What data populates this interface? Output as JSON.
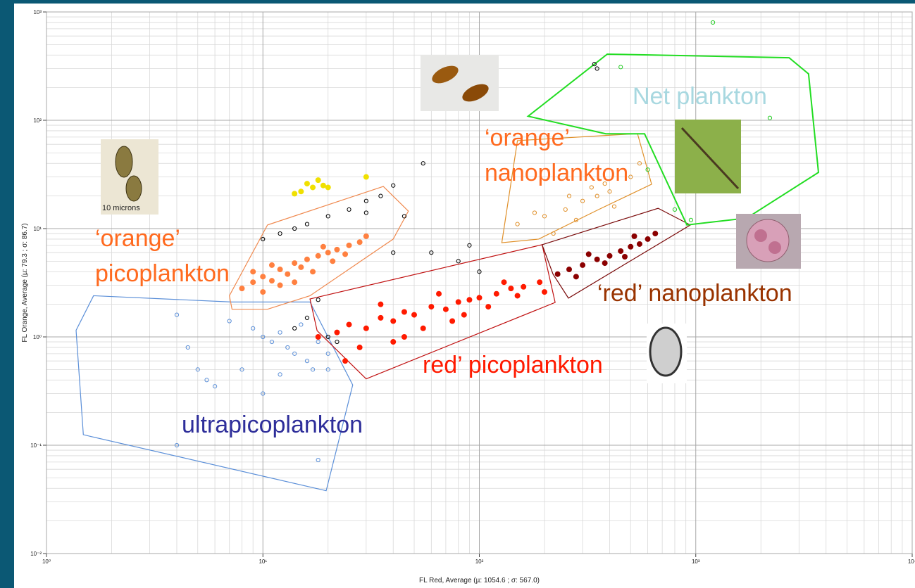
{
  "chart_data": {
    "type": "scatter",
    "log_x": true,
    "log_y": true,
    "grid": true,
    "x_label": "FL Red, Average (µ: 1054.6 ; σ: 567.0)",
    "y_label": "FL Orange, Average (µ: 79.3 ; σ: 86.7)",
    "xlim": [
      1,
      10000
    ],
    "ylim": [
      0.01,
      1000
    ],
    "xticks": [
      {
        "value": 1,
        "label": "10⁰"
      },
      {
        "value": 10,
        "label": "10¹"
      },
      {
        "value": 100,
        "label": "10²"
      },
      {
        "value": 1000,
        "label": "10³"
      },
      {
        "value": 10000,
        "label": "10⁴"
      }
    ],
    "yticks": [
      {
        "value": 0.01,
        "label": "10⁻²"
      },
      {
        "value": 0.1,
        "label": "10⁻¹"
      },
      {
        "value": 1,
        "label": "10⁰"
      },
      {
        "value": 10,
        "label": "10¹"
      },
      {
        "value": 100,
        "label": "10²"
      },
      {
        "value": 1000,
        "label": "10³"
      }
    ],
    "xminorticks": [
      2,
      3,
      4,
      5,
      6,
      7,
      8,
      9,
      20,
      30,
      40,
      50,
      60,
      70,
      80,
      90,
      200,
      300,
      400,
      500,
      600,
      700,
      800,
      900,
      2000,
      3000,
      4000,
      5000,
      6000,
      7000,
      8000,
      9000
    ],
    "yminorticks": [
      0.02,
      0.03,
      0.04,
      0.05,
      0.06,
      0.07,
      0.08,
      0.09,
      0.2,
      0.3,
      0.4,
      0.5,
      0.6,
      0.7,
      0.8,
      0.9,
      2,
      3,
      4,
      5,
      6,
      7,
      8,
      9,
      20,
      30,
      40,
      50,
      60,
      70,
      80,
      90,
      200,
      300,
      400,
      500,
      600,
      700,
      800,
      900
    ],
    "gates": [
      {
        "label": [
          "ultrapicoplankton"
        ],
        "color": "#5b8fd8",
        "label_color": "#2e2e9a",
        "vertices": [
          [
            1.65,
            2.4
          ],
          [
            1.37,
            1.15
          ],
          [
            1.48,
            0.125
          ],
          [
            19.6,
            0.038
          ],
          [
            26,
            0.36
          ],
          [
            16.5,
            2.1
          ],
          [
            7.2,
            2.1
          ]
        ]
      },
      {
        "label": [
          "‘orange’",
          "picoplankton"
        ],
        "color": "#f08a50",
        "label_color": "#ff6a1f",
        "vertices": [
          [
            7,
            2.4
          ],
          [
            10.5,
            10.8
          ],
          [
            36,
            24.5
          ],
          [
            47,
            14.5
          ],
          [
            40,
            8
          ],
          [
            16.5,
            2.4
          ],
          [
            10.5,
            1.8
          ],
          [
            7.2,
            1.8
          ]
        ]
      },
      {
        "label": [
          "red’ picoplankton"
        ],
        "color": "#c01010",
        "label_color": "#ff1a00",
        "vertices": [
          [
            16.5,
            2.24
          ],
          [
            195,
            7.1
          ],
          [
            224,
            2.08
          ],
          [
            30,
            0.41
          ],
          [
            17.8,
            1.14
          ]
        ]
      },
      {
        "label": [
          "‘red’ nanoplankton"
        ],
        "color": "#7a0a0a",
        "label_color": "#993300",
        "vertices": [
          [
            195,
            7.1
          ],
          [
            670,
            15.4
          ],
          [
            944,
            10.8
          ],
          [
            258,
            2.28
          ],
          [
            219,
            3.8
          ]
        ]
      },
      {
        "label": [
          "‘orange’",
          "nanoplankton"
        ],
        "color": "#e0902a",
        "label_color": "#ff6a1f",
        "vertices": [
          [
            127,
            7.4
          ],
          [
            150,
            64.9
          ],
          [
            538,
            75.3
          ],
          [
            625,
            25.7
          ],
          [
            356,
            15
          ],
          [
            188,
            8
          ]
        ]
      },
      {
        "label": [
          "Net plankton"
        ],
        "color": "#22dd22",
        "label_color": "#a8d8e0",
        "vertices": [
          [
            168,
            109
          ],
          [
            390,
            408
          ],
          [
            2700,
            378
          ],
          [
            3320,
            268
          ],
          [
            3690,
            33
          ],
          [
            1720,
            12.5
          ],
          [
            910,
            10.8
          ],
          [
            580,
            75
          ],
          [
            384,
            75
          ]
        ]
      }
    ],
    "series": [
      {
        "color": "#5b8fd8",
        "filled": false,
        "x": [
          9,
          10,
          11,
          12,
          13,
          14,
          15,
          16,
          18,
          20,
          4,
          4.5,
          5,
          5.5,
          6,
          8,
          10,
          12,
          17,
          7,
          20,
          4,
          18
        ],
        "y": [
          1.2,
          1.0,
          0.9,
          1.1,
          0.8,
          0.7,
          1.3,
          0.6,
          0.9,
          0.7,
          1.6,
          0.8,
          0.5,
          0.4,
          0.35,
          0.5,
          0.3,
          0.45,
          0.5,
          1.4,
          0.5,
          0.1,
          0.073
        ]
      },
      {
        "color": "#000000",
        "filled": false,
        "x": [
          10,
          12,
          14,
          16,
          20,
          25,
          30,
          35,
          40,
          55,
          45,
          60,
          80,
          100,
          40,
          14,
          16,
          20,
          22,
          18,
          90,
          30,
          350,
          340
        ],
        "y": [
          8,
          9,
          10,
          11,
          13,
          15,
          18,
          20,
          25,
          40,
          13,
          6,
          5,
          4,
          6,
          1.2,
          1.5,
          1.0,
          0.9,
          2.2,
          7,
          14,
          300,
          330
        ]
      },
      {
        "color": "#ff8040",
        "filled": true,
        "x": [
          8,
          9,
          10,
          11,
          12,
          13,
          14,
          15,
          16,
          18,
          20,
          22,
          25,
          28,
          10,
          12,
          9,
          17,
          21,
          14,
          30,
          24,
          11,
          19
        ],
        "y": [
          2.8,
          3.2,
          3.6,
          3.3,
          4.2,
          3.8,
          4.8,
          4.4,
          5.2,
          5.6,
          6,
          6.4,
          7,
          7.5,
          2.6,
          3,
          4,
          4,
          5,
          3.2,
          8.5,
          5.8,
          4.6,
          6.8
        ]
      },
      {
        "color": "#ff1a00",
        "filled": true,
        "x": [
          18,
          22,
          25,
          30,
          35,
          40,
          45,
          50,
          60,
          70,
          80,
          90,
          100,
          120,
          140,
          160,
          190,
          28,
          40,
          55,
          75,
          110,
          150,
          35,
          65,
          130,
          200,
          24,
          45,
          85
        ],
        "y": [
          1.0,
          1.1,
          1.3,
          1.2,
          1.5,
          1.4,
          1.7,
          1.6,
          1.9,
          1.8,
          2.1,
          2.2,
          2.3,
          2.5,
          2.8,
          2.9,
          3.2,
          0.8,
          0.9,
          1.2,
          1.4,
          1.9,
          2.4,
          2.0,
          2.5,
          3.2,
          2.6,
          0.6,
          1.0,
          1.6
        ]
      },
      {
        "color": "#8b0000",
        "filled": true,
        "x": [
          230,
          260,
          300,
          350,
          400,
          450,
          500,
          550,
          600,
          650,
          280,
          380,
          470,
          320,
          520
        ],
        "y": [
          3.8,
          4.2,
          4.6,
          5.2,
          5.6,
          6.2,
          6.8,
          7.2,
          8,
          9,
          3.6,
          4.8,
          5.5,
          5.8,
          8.5
        ]
      },
      {
        "color": "#e0902a",
        "filled": false,
        "x": [
          150,
          200,
          250,
          300,
          350,
          400,
          280,
          330,
          220,
          180,
          420,
          260,
          500,
          550,
          380
        ],
        "y": [
          11,
          13,
          15,
          18,
          20,
          22,
          12,
          24,
          9,
          14,
          16,
          20,
          30,
          40,
          26
        ]
      },
      {
        "color": "#f0e000",
        "filled": true,
        "x": [
          15,
          16,
          17,
          18,
          19,
          14,
          20,
          30
        ],
        "y": [
          22,
          26,
          24,
          28,
          25,
          21,
          24,
          30
        ]
      },
      {
        "color": "#22cc22",
        "filled": false,
        "x": [
          450,
          2200,
          600,
          800,
          950,
          1200
        ],
        "y": [
          310,
          105,
          35,
          15,
          12,
          800
        ]
      }
    ],
    "images": [
      {
        "caption": "10 microns"
      }
    ]
  }
}
